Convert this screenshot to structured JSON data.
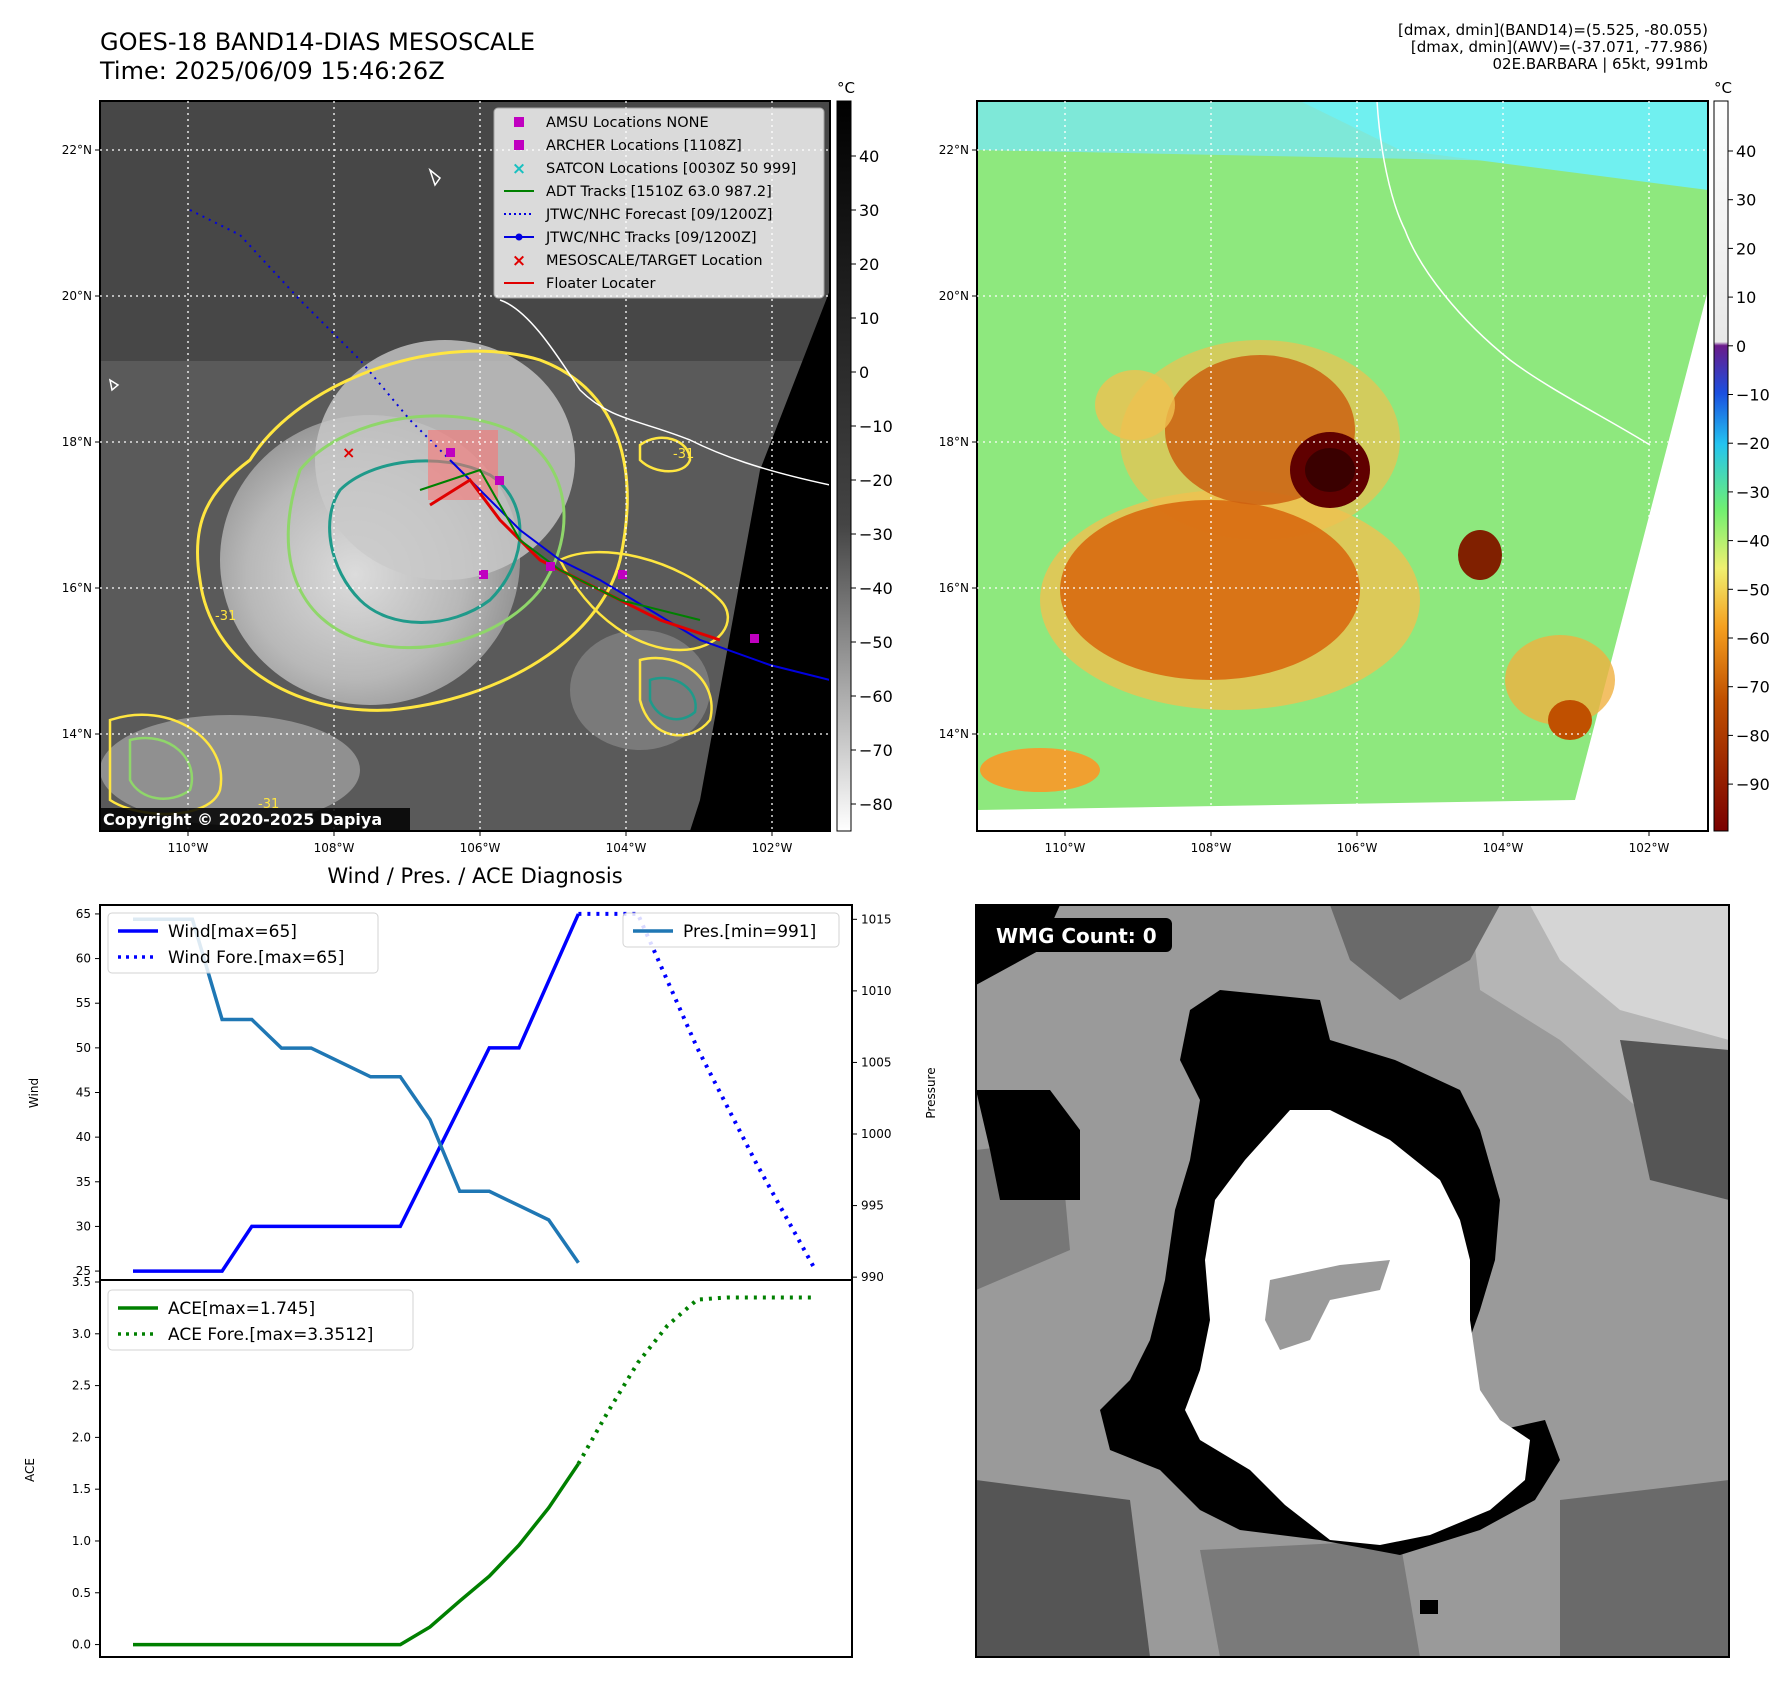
{
  "header": {
    "title_line1": "GOES-18 BAND14-DIAS MESOSCALE",
    "title_line2": "Time: 2025/06/09 15:46:26Z",
    "info_line1": "[dmax, dmin](BAND14)=(5.525, -80.055)",
    "info_line2": "[dmax, dmin](AWV)=(-37.071, -77.986)",
    "info_line3": "02E.BARBARA | 65kt, 991mb"
  },
  "map": {
    "lon_ticks": [
      "110°W",
      "108°W",
      "106°W",
      "104°W",
      "102°W"
    ],
    "lat_ticks": [
      "22°N",
      "20°N",
      "18°N",
      "16°N",
      "14°N"
    ],
    "copyright": "Copyright © 2020-2025 Dapiya",
    "contour_label": "-31",
    "legend": [
      {
        "label": "AMSU Locations NONE",
        "color": "#c000c0",
        "marker": "square"
      },
      {
        "label": "ARCHER Locations [1108Z]",
        "color": "#c000c0",
        "marker": "square"
      },
      {
        "label": "SATCON Locations [0030Z 50 999]",
        "color": "#19c0c0",
        "marker": "x"
      },
      {
        "label": "ADT Tracks [1510Z 63.0 987.2]",
        "color": "#008000",
        "marker": "line"
      },
      {
        "label": "JTWC/NHC Forecast [09/1200Z]",
        "color": "#0000e0",
        "marker": "dotted"
      },
      {
        "label": "JTWC/NHC Tracks [09/1200Z]",
        "color": "#0000e0",
        "marker": "line-dot"
      },
      {
        "label": "MESOSCALE/TARGET Location",
        "color": "#e00000",
        "marker": "x"
      },
      {
        "label": "Floater Locater",
        "color": "#e00000",
        "marker": "line"
      }
    ]
  },
  "colorbar_gray": {
    "unit": "°C",
    "ticks": [
      "40",
      "30",
      "20",
      "10",
      "0",
      "−10",
      "−20",
      "−30",
      "−40",
      "−50",
      "−60",
      "−70",
      "−80"
    ]
  },
  "colorbar_color": {
    "unit": "°C",
    "ticks": [
      "40",
      "30",
      "20",
      "10",
      "0",
      "−10",
      "−20",
      "−30",
      "−40",
      "−50",
      "−60",
      "−70",
      "−80",
      "−90"
    ]
  },
  "wmg": {
    "label": "WMG Count: 0"
  },
  "chart_data": [
    {
      "type": "line",
      "title": "Wind / Pres. / ACE Diagnosis",
      "ylabel": "Wind",
      "y2label": "Pressure",
      "ylim": [
        24,
        66
      ],
      "y2lim": [
        989.8,
        1016
      ],
      "yticks": [
        "25",
        "30",
        "35",
        "40",
        "45",
        "50",
        "55",
        "60",
        "65"
      ],
      "y2ticks": [
        "990",
        "995",
        "1000",
        "1005",
        "1010",
        "1015"
      ],
      "series": [
        {
          "name": "Wind[max=65]",
          "color": "#0000ff",
          "style": "solid",
          "axis": "left",
          "x": [
            0,
            3,
            4,
            9,
            12,
            13,
            15
          ],
          "y": [
            25,
            25,
            30,
            30,
            50,
            50,
            65
          ]
        },
        {
          "name": "Wind Fore.[max=65]",
          "color": "#0000ff",
          "style": "dotted",
          "axis": "left",
          "x": [
            15,
            17,
            19,
            21,
            23
          ],
          "y": [
            65,
            65,
            50,
            37,
            25
          ]
        },
        {
          "name": "Pres.[min=991]",
          "color": "#1f77b4",
          "style": "solid",
          "axis": "right",
          "x": [
            0,
            2,
            3,
            4,
            5,
            6,
            7,
            8,
            9,
            10,
            11,
            12,
            13,
            14,
            15
          ],
          "y": [
            1015,
            1015,
            1008,
            1008,
            1006,
            1006,
            1005,
            1004,
            1004,
            1001,
            996,
            996,
            995,
            994,
            991
          ]
        }
      ]
    },
    {
      "type": "line",
      "ylabel": "ACE",
      "ylim": [
        -0.12,
        3.5
      ],
      "yticks": [
        "0.0",
        "0.5",
        "1.0",
        "1.5",
        "2.0",
        "2.5",
        "3.0",
        "3.5"
      ],
      "series": [
        {
          "name": "ACE[max=1.745]",
          "color": "#008000",
          "style": "solid",
          "x": [
            0,
            9,
            10,
            11,
            12,
            13,
            14,
            15
          ],
          "y": [
            0,
            0,
            0.17,
            0.42,
            0.66,
            0.96,
            1.32,
            1.745
          ]
        },
        {
          "name": "ACE Fore.[max=3.3512]",
          "color": "#008000",
          "style": "dotted",
          "x": [
            15,
            16,
            17,
            18,
            19,
            20,
            21,
            23
          ],
          "y": [
            1.745,
            2.25,
            2.72,
            3.08,
            3.33,
            3.35,
            3.35,
            3.35
          ]
        }
      ]
    }
  ]
}
